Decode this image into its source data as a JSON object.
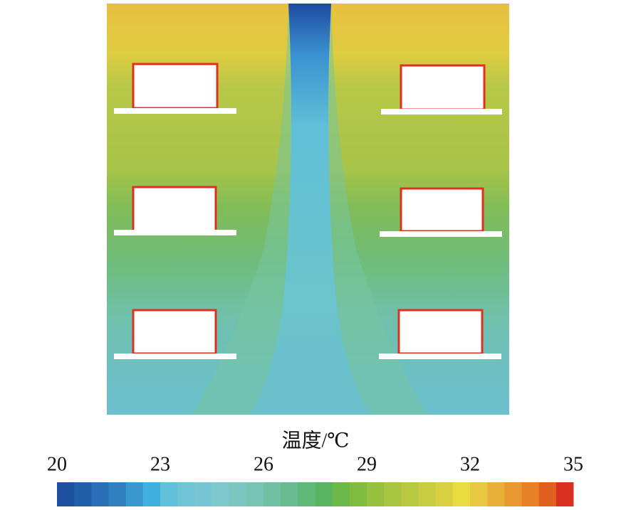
{
  "chart_data": {
    "type": "contour",
    "colorbar": {
      "label": "温度/℃",
      "xlim": [
        20,
        35
      ],
      "xticks": [
        20,
        23,
        26,
        29,
        32,
        35
      ],
      "colors": [
        "#1e50a0",
        "#2060a8",
        "#2a70b8",
        "#3080c0",
        "#3a98d0",
        "#40b0e0",
        "#60c0d8",
        "#70c4d8",
        "#78c6d4",
        "#7cc8cc",
        "#7cc6c0",
        "#78c4b4",
        "#70c0a4",
        "#68bc90",
        "#60b878",
        "#58b460",
        "#6cb848",
        "#80bc40",
        "#98c040",
        "#a8c440",
        "#b8c840",
        "#c8cc40",
        "#d8d040",
        "#e8dc40",
        "#e8c840",
        "#e8b038",
        "#e89830",
        "#e88028",
        "#e06020",
        "#d83020"
      ]
    }
  }
}
